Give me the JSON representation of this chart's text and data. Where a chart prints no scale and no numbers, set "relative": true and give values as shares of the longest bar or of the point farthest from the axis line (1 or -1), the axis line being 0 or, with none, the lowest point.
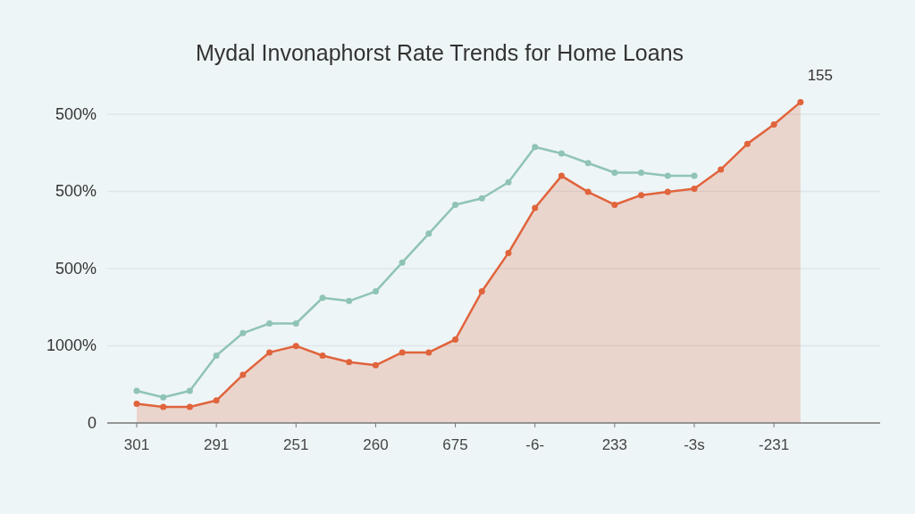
{
  "chart_data": {
    "type": "line",
    "title": "Mydal Invonaphorst Rate Trends for Home Loans",
    "categories": [
      "301",
      null,
      null,
      "291",
      null,
      null,
      "251",
      null,
      null,
      "260",
      null,
      null,
      "675",
      null,
      null,
      "-6-",
      null,
      null,
      "233",
      null,
      null,
      "-3s",
      null,
      null,
      "-231",
      null
    ],
    "relative": true,
    "grid": "y",
    "marker": "circle",
    "line_style": "solid",
    "series": [
      {
        "color": "#8fc4b5",
        "values": [
          0.1,
          0.08,
          0.1,
          0.21,
          0.28,
          0.31,
          0.31,
          0.39,
          0.38,
          0.41,
          0.5,
          0.59,
          0.68,
          0.7,
          0.75,
          0.86,
          0.84,
          0.81,
          0.78,
          0.78,
          0.77,
          0.77,
          null,
          null,
          null,
          null
        ]
      },
      {
        "type": "area",
        "color": "#e0643c",
        "values": [
          0.06,
          0.05,
          0.05,
          0.07,
          0.15,
          0.22,
          0.24,
          0.21,
          0.19,
          0.18,
          0.22,
          0.22,
          0.26,
          0.41,
          0.53,
          0.67,
          0.77,
          0.72,
          0.68,
          0.71,
          0.72,
          0.73,
          0.79,
          0.87,
          0.93,
          1
        ]
      }
    ],
    "annotations": [
      "0",
      "1000%",
      "500%",
      "500%",
      "500%",
      "155"
    ]
  }
}
